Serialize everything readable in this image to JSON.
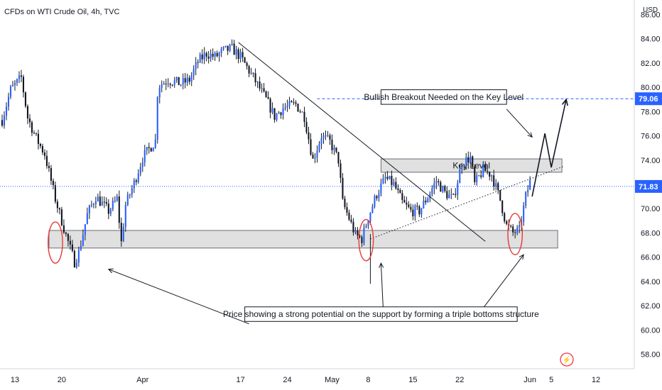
{
  "chart_data": {
    "type": "candlestick",
    "title": "CFDs on WTI Crude Oil, 4h, TVC",
    "currency": "USD",
    "ylim": [
      56.8,
      87.2
    ],
    "y_ticks": [
      "86.00",
      "84.00",
      "82.00",
      "80.00",
      "78.00",
      "76.00",
      "74.00",
      "72.00",
      "70.00",
      "68.00",
      "66.00",
      "64.00",
      "62.00",
      "60.00",
      "58.00"
    ],
    "x_ticks": [
      {
        "label": "13",
        "idx": 6
      },
      {
        "label": "20",
        "idx": 28
      },
      {
        "label": "Apr",
        "idx": 66
      },
      {
        "label": "17",
        "idx": 112
      },
      {
        "label": "24",
        "idx": 134
      },
      {
        "label": "May",
        "idx": 155
      },
      {
        "label": "8",
        "idx": 172
      },
      {
        "label": "15",
        "idx": 193
      },
      {
        "label": "22",
        "idx": 215
      },
      {
        "label": "Jun",
        "idx": 248
      },
      {
        "label": "5",
        "idx": 258
      },
      {
        "label": "12",
        "idx": 279
      }
    ],
    "x_range": [
      -1,
      297
    ],
    "current_price": 71.83,
    "current_price_label": "71.83",
    "target_price": 79.06,
    "target_price_label": "79.06",
    "price_path": [
      [
        0,
        77.3
      ],
      [
        4,
        79.8
      ],
      [
        9,
        80.8
      ],
      [
        12,
        77.5
      ],
      [
        16,
        75.8
      ],
      [
        20,
        74.5
      ],
      [
        25,
        70.8
      ],
      [
        30,
        67.8
      ],
      [
        34,
        65.6
      ],
      [
        36,
        66.4
      ],
      [
        40,
        69.5
      ],
      [
        44,
        71.0
      ],
      [
        50,
        69.8
      ],
      [
        54,
        70.8
      ],
      [
        56,
        67.2
      ],
      [
        58,
        70.3
      ],
      [
        62,
        72.1
      ],
      [
        66,
        74.2
      ],
      [
        72,
        75.6
      ],
      [
        73,
        79.5
      ],
      [
        74,
        80.2
      ],
      [
        78,
        80.6
      ],
      [
        84,
        80.3
      ],
      [
        88,
        80.6
      ],
      [
        92,
        82.1
      ],
      [
        96,
        82.8
      ],
      [
        100,
        82.5
      ],
      [
        104,
        83.0
      ],
      [
        108,
        83.2
      ],
      [
        112,
        82.5
      ],
      [
        118,
        80.8
      ],
      [
        124,
        79.0
      ],
      [
        128,
        77.6
      ],
      [
        132,
        78.3
      ],
      [
        138,
        78.6
      ],
      [
        142,
        77.6
      ],
      [
        146,
        74.0
      ],
      [
        150,
        76.0
      ],
      [
        154,
        75.5
      ],
      [
        158,
        74.0
      ],
      [
        160,
        70.5
      ],
      [
        163,
        69.2
      ],
      [
        166,
        67.8
      ],
      [
        169,
        67.5
      ],
      [
        172,
        69.3
      ],
      [
        176,
        71.2
      ],
      [
        180,
        72.5
      ],
      [
        184,
        72.0
      ],
      [
        188,
        70.5
      ],
      [
        192,
        69.8
      ],
      [
        196,
        69.8
      ],
      [
        200,
        71.0
      ],
      [
        204,
        72.3
      ],
      [
        208,
        71.3
      ],
      [
        212,
        70.8
      ],
      [
        216,
        73.8
      ],
      [
        220,
        74.2
      ],
      [
        222,
        72.0
      ],
      [
        226,
        73.2
      ],
      [
        230,
        72.8
      ],
      [
        234,
        70.7
      ],
      [
        237,
        68.6
      ],
      [
        240,
        68.0
      ],
      [
        243,
        68.2
      ],
      [
        246,
        71.0
      ],
      [
        248,
        72.2
      ]
    ],
    "zones": [
      {
        "name": "support",
        "y0": 66.75,
        "y1": 68.2,
        "x0": 22,
        "x1": 261
      },
      {
        "name": "key-level",
        "label": "Key Level",
        "y0": 73.0,
        "y1": 74.1,
        "x0": 178,
        "x1": 263
      }
    ],
    "lines": [
      {
        "name": "downtrend",
        "style": "solid",
        "from": [
          111,
          83.7
        ],
        "to": [
          227,
          67.3
        ]
      },
      {
        "name": "rising-support",
        "style": "dotted",
        "from": [
          173,
          67.5
        ],
        "to": [
          264,
          73.5
        ]
      },
      {
        "name": "low-marker",
        "style": "solid",
        "from": [
          173,
          67.9
        ],
        "to": [
          173,
          63.8
        ]
      }
    ],
    "projection": [
      [
        249,
        71.0
      ],
      [
        255,
        76.2
      ],
      [
        258,
        73.4
      ],
      [
        265,
        79.0
      ]
    ],
    "ellipses": [
      {
        "cx": 25,
        "cy": 67.2,
        "rx": 3.4,
        "ry": 1.7
      },
      {
        "cx": 171,
        "cy": 67.4,
        "rx": 3.4,
        "ry": 1.7
      },
      {
        "cx": 241,
        "cy": 67.9,
        "rx": 3.4,
        "ry": 1.7
      }
    ],
    "annotations": [
      {
        "name": "breakout-note",
        "text": "Bullish Breakout Needed on the Key Level",
        "box": {
          "x": 178,
          "y": 78.6,
          "w": 59,
          "h": 1.2
        },
        "arrows": [
          {
            "from": [
              237,
              78.2
            ],
            "to": [
              249,
              75.9
            ]
          }
        ]
      },
      {
        "name": "triple-bottom-note",
        "text": "Price showing a strong potential on the support by forming a triple bottoms structure",
        "box": {
          "x": 114,
          "y": 60.7,
          "w": 128,
          "h": 1.2
        },
        "arrows": [
          {
            "from": [
              116,
              60.5
            ],
            "to": [
              50,
              65.0
            ]
          },
          {
            "from": [
              179,
              61.8
            ],
            "to": [
              178,
              65.5
            ]
          },
          {
            "from": [
              226,
              61.8
            ],
            "to": [
              245,
              66.2
            ]
          }
        ]
      }
    ],
    "logo_text": "⚡"
  }
}
